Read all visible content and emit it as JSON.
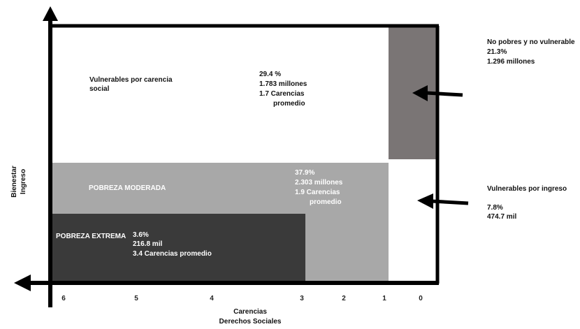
{
  "vulnerables_carencia": {
    "name_line1": "Vulnerables por carencia",
    "name_line2": "social",
    "pct": "29.4 %",
    "people": "1.783 millones",
    "carencias_line1": "1.7 Carencias",
    "carencias_line2": "promedio"
  },
  "no_pobres": {
    "name": "No pobres y no vulnerable",
    "pct": "21.3%",
    "people": "1.296 millones"
  },
  "pobreza_moderada": {
    "name": "POBREZA MODERADA",
    "pct": "37.9%",
    "people": "2.303 millones",
    "carencias_line1": "1.9 Carencias",
    "carencias_line2": "promedio"
  },
  "vulnerables_ingreso": {
    "name": "Vulnerables por ingreso",
    "pct": "7.8%",
    "people": "474.7 mil"
  },
  "pobreza_extrema": {
    "name": "POBREZA EXTREMA",
    "pct": "3.6%",
    "people": "216.8 mil",
    "carencias": "3.4 Carencias promedio"
  },
  "axes": {
    "y_label_line1": "Bienestar",
    "y_label_line2": "Ingreso",
    "x_label_line1": "Carencias",
    "x_label_line2": "Derechos Sociales",
    "x_ticks": [
      "6",
      "5",
      "4",
      "3",
      "2",
      "1",
      "0"
    ]
  },
  "colors": {
    "pobreza_extrema": "#3a3a3a",
    "pobreza_moderada": "#a8a8a8",
    "no_pobres": "#7a7575",
    "axis": "#000000"
  }
}
